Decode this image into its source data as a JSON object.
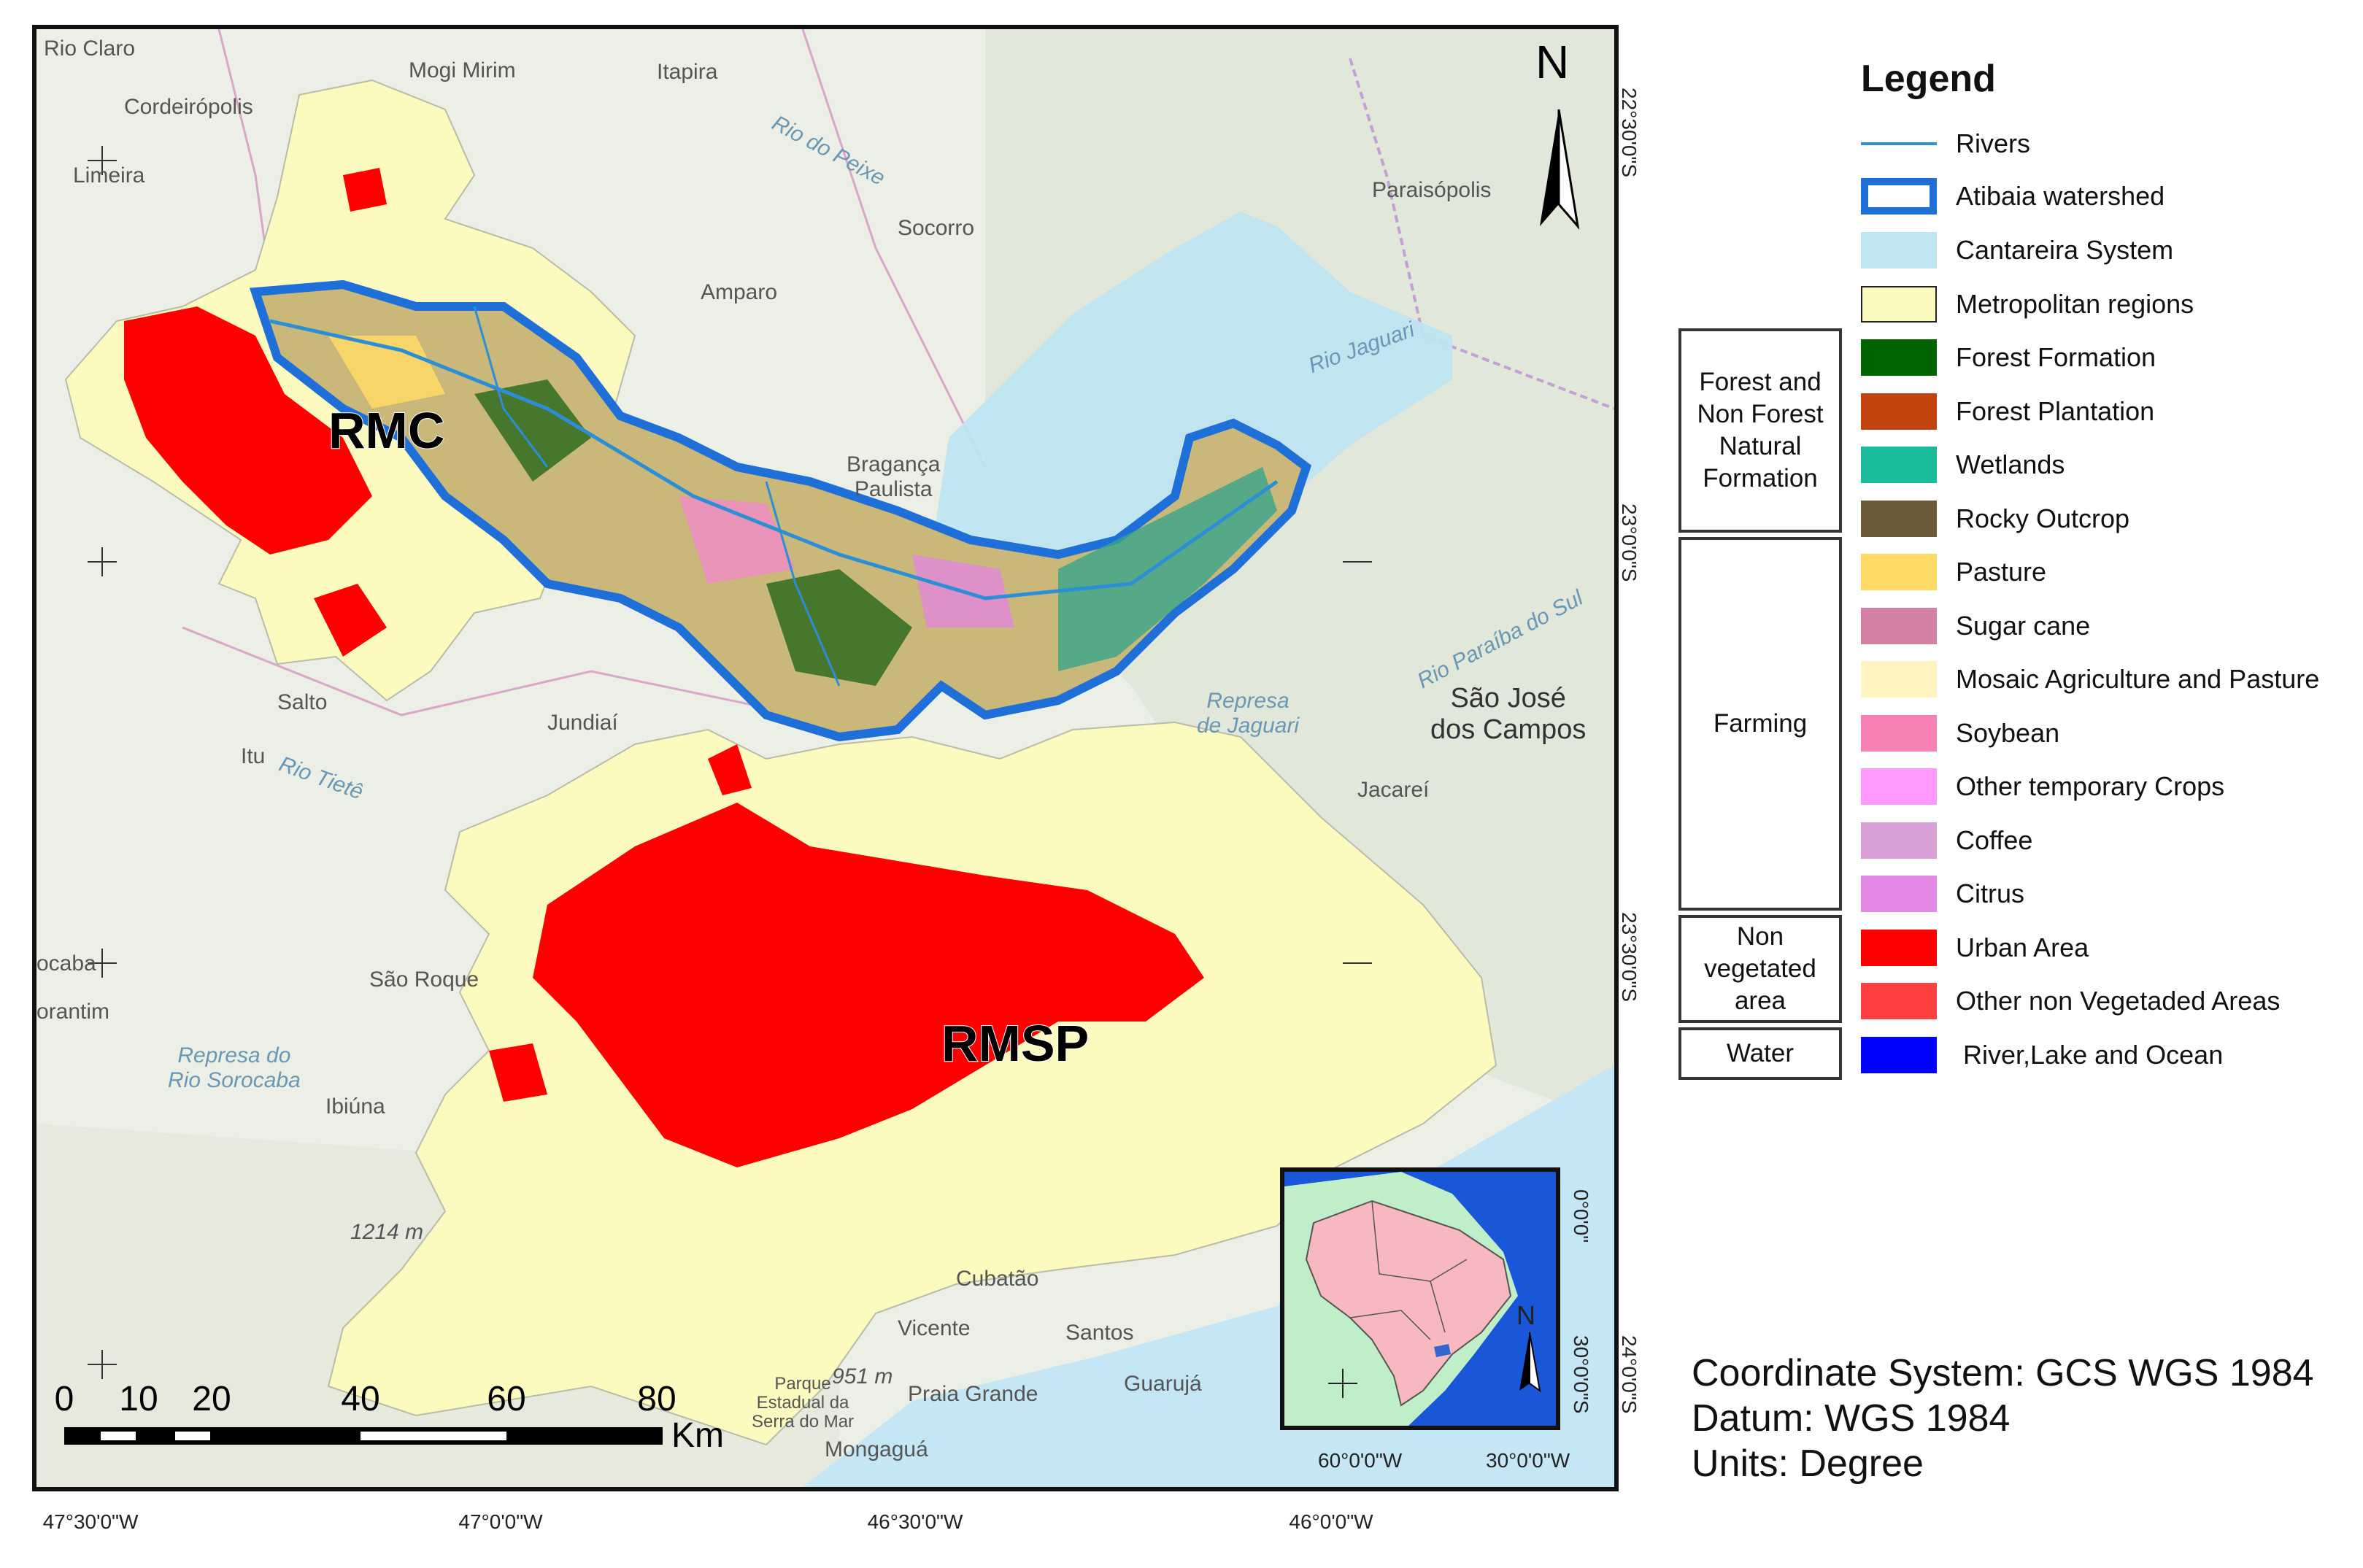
{
  "map": {
    "places": [
      {
        "id": "rio-claro",
        "text": "Rio Claro"
      },
      {
        "id": "mogi-mirim",
        "text": "Mogi Mirim"
      },
      {
        "id": "itapira",
        "text": "Itapira"
      },
      {
        "id": "cordeiropolis",
        "text": "Cordeirópolis"
      },
      {
        "id": "limeira",
        "text": "Limeira"
      },
      {
        "id": "socorro",
        "text": "Socorro"
      },
      {
        "id": "amparo",
        "text": "Amparo"
      },
      {
        "id": "paraisopolis",
        "text": "Paraisópolis"
      },
      {
        "id": "braganca",
        "text": "Bragança\nPaulista"
      },
      {
        "id": "jundiai",
        "text": "Jundiaí"
      },
      {
        "id": "itu",
        "text": "Itu"
      },
      {
        "id": "sao-jose",
        "text": "São José\ndos Campos"
      },
      {
        "id": "jacarei",
        "text": "Jacareí"
      },
      {
        "id": "sao-roque",
        "text": "São Roque"
      },
      {
        "id": "ibiuna",
        "text": "Ibiúna"
      },
      {
        "id": "sorocaba",
        "text": "ocaba"
      },
      {
        "id": "votorantim",
        "text": "orantim"
      },
      {
        "id": "cubatao",
        "text": "Cubatão"
      },
      {
        "id": "santos",
        "text": "Santos"
      },
      {
        "id": "sao-vicente",
        "text": "Vicente"
      },
      {
        "id": "praia-grande",
        "text": "Praia Grande"
      },
      {
        "id": "guaruja",
        "text": "Guarujá"
      },
      {
        "id": "mongagua",
        "text": "Mongaguá"
      },
      {
        "id": "salto",
        "text": "Salto"
      },
      {
        "id": "elev-1214",
        "text": "1214 m"
      },
      {
        "id": "elev-951",
        "text": "951 m"
      },
      {
        "id": "parque",
        "text": "Parque\nEstadual da\nSerra do Mar"
      }
    ],
    "water_labels": [
      {
        "id": "represa-sorocaba",
        "text": "Represa do\nRio Sorocaba"
      },
      {
        "id": "represa-jaguari",
        "text": "Represa\nde Jaguari"
      },
      {
        "id": "rio-jaguari",
        "text": "Rio Jaguari"
      },
      {
        "id": "rio-tiete",
        "text": "Rio Tietê"
      },
      {
        "id": "rio-peixe",
        "text": "Rio do Peixe"
      },
      {
        "id": "rio-paraiba",
        "text": "Rio Paraíba do Sul"
      }
    ],
    "region_labels": {
      "rmc": "RMC",
      "rmsp": "RMSP"
    },
    "north_arrow": "N",
    "lon_ticks": [
      "47°30'0\"W",
      "47°0'0\"W",
      "46°30'0\"W",
      "46°0'0\"W"
    ],
    "lat_ticks": [
      "22°30'0\"S",
      "23°0'0\"S",
      "23°30'0\"S",
      "24°0'0\"S"
    ],
    "scale_bar": {
      "ticks": [
        "0",
        "10",
        "20",
        "40",
        "60",
        "80"
      ],
      "unit": "Km"
    }
  },
  "inset": {
    "north": "N",
    "lon_ticks": [
      "60°0'0\"W",
      "30°0'0\"W"
    ],
    "lat_ticks": [
      "0°0'0\"",
      "30°0'0\"S"
    ]
  },
  "legend": {
    "title": "Legend",
    "items": [
      {
        "label": "Rivers",
        "color": "#2c8fd6",
        "kind": "line"
      },
      {
        "label": "Atibaia watershed",
        "color": "#1f6fd8",
        "kind": "outline"
      },
      {
        "label": "Cantareira System",
        "color": "#bfe4f2",
        "kind": "fill"
      },
      {
        "label": "Metropolitan regions",
        "color": "#fdfac0",
        "kind": "fill"
      },
      {
        "label": "Forest Formation",
        "color": "#006400",
        "kind": "fill"
      },
      {
        "label": "Forest Plantation",
        "color": "#c1440e",
        "kind": "fill"
      },
      {
        "label": "Wetlands",
        "color": "#1abc9c",
        "kind": "fill"
      },
      {
        "label": "Rocky Outcrop",
        "color": "#6b5a3a",
        "kind": "fill"
      },
      {
        "label": "Pasture",
        "color": "#ffd966",
        "kind": "fill"
      },
      {
        "label": "Sugar cane",
        "color": "#d47fa6",
        "kind": "fill"
      },
      {
        "label": "Mosaic Agriculture and Pasture",
        "color": "#fff3bf",
        "kind": "fill"
      },
      {
        "label": "Soybean",
        "color": "#f780b5",
        "kind": "fill"
      },
      {
        "label": "Other temporary Crops",
        "color": "#ff99ff",
        "kind": "fill"
      },
      {
        "label": "Coffee",
        "color": "#d9a1d8",
        "kind": "fill"
      },
      {
        "label": "Citrus",
        "color": "#e487e4",
        "kind": "fill"
      },
      {
        "label": "Urban Area",
        "color": "#ff0000",
        "kind": "fill"
      },
      {
        "label": "Other non Vegetaded Areas",
        "color": "#ff4040",
        "kind": "fill"
      },
      {
        "label": "River,Lake and Ocean",
        "color": "#0000ff",
        "kind": "fill"
      }
    ],
    "groups": [
      {
        "id": "forest",
        "text": "Forest and\nNon Forest\nNatural\nFormation"
      },
      {
        "id": "farming",
        "text": "Farming"
      },
      {
        "id": "nonveg",
        "text": "Non\nvegetated\narea"
      },
      {
        "id": "water",
        "text": "Water"
      }
    ]
  },
  "info": {
    "coordinate_system": "Coordinate System: GCS WGS 1984",
    "datum": "Datum: WGS 1984",
    "units": "Units: Degree"
  }
}
